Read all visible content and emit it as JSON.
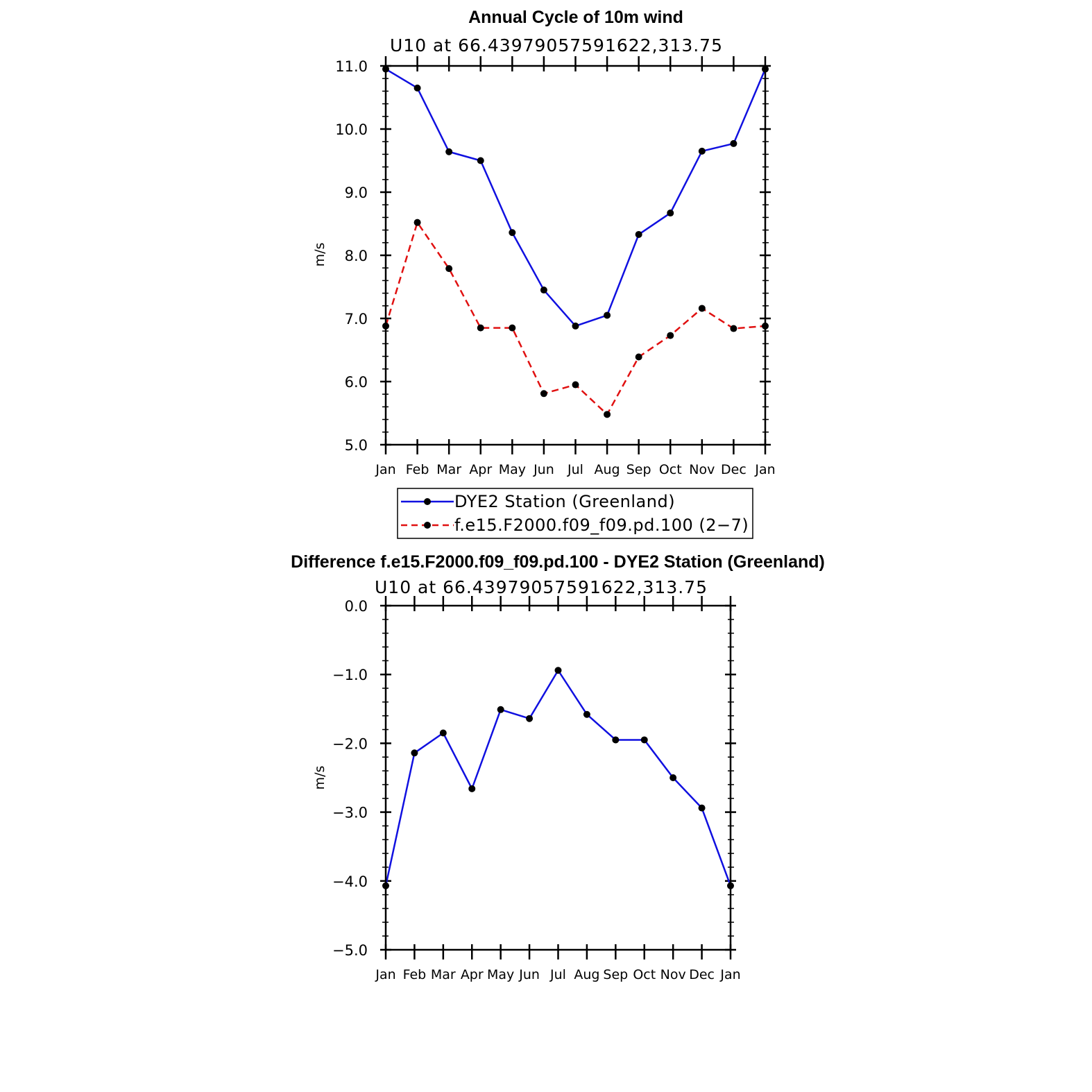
{
  "colors": {
    "obs_line": "#1010e0",
    "model_line": "#e01010",
    "marker": "#000000",
    "axis": "#000000",
    "background": "#ffffff"
  },
  "chart_data": [
    {
      "type": "line",
      "title": "Annual Cycle of 10m wind",
      "subtitle": "U10 at 66.43979057591622,313.75",
      "ylabel": "m/s",
      "xlabel": "",
      "categories": [
        "Jan",
        "Feb",
        "Mar",
        "Apr",
        "May",
        "Jun",
        "Jul",
        "Aug",
        "Sep",
        "Oct",
        "Nov",
        "Dec",
        "Jan"
      ],
      "ylim": [
        5.0,
        11.0
      ],
      "yticks": [
        "5.0",
        "6.0",
        "7.0",
        "8.0",
        "9.0",
        "10.0",
        "11.0"
      ],
      "series": [
        {
          "name": "DYE2 Station (Greenland)",
          "style": "solid",
          "color": "#1010e0",
          "values": [
            10.95,
            10.65,
            9.64,
            9.5,
            8.36,
            7.45,
            6.88,
            7.05,
            8.33,
            8.67,
            9.65,
            9.77,
            10.95
          ]
        },
        {
          "name": "f.e15.F2000.f09_f09.pd.100 (2−7)",
          "style": "dashed",
          "color": "#e01010",
          "values": [
            6.88,
            8.52,
            7.79,
            6.85,
            6.85,
            5.81,
            5.95,
            5.48,
            6.39,
            6.73,
            7.16,
            6.84,
            6.88
          ]
        }
      ],
      "legend": "bottom-center",
      "grid": false
    },
    {
      "type": "line",
      "title": "Difference f.e15.F2000.f09_f09.pd.100 - DYE2 Station (Greenland)",
      "subtitle": "U10 at 66.43979057591622,313.75",
      "ylabel": "m/s",
      "xlabel": "",
      "categories": [
        "Jan",
        "Feb",
        "Mar",
        "Apr",
        "May",
        "Jun",
        "Jul",
        "Aug",
        "Sep",
        "Oct",
        "Nov",
        "Dec",
        "Jan"
      ],
      "ylim": [
        -5.0,
        0.0
      ],
      "yticks": [
        "−5.0",
        "−4.0",
        "−3.0",
        "−2.0",
        "−1.0",
        "0.0"
      ],
      "series": [
        {
          "style": "solid",
          "color": "#1010e0",
          "values": [
            -4.07,
            -2.14,
            -1.85,
            -2.66,
            -1.51,
            -1.64,
            -0.94,
            -1.58,
            -1.95,
            -1.95,
            -2.5,
            -2.94,
            -4.07
          ]
        }
      ],
      "legend": "none",
      "grid": false
    }
  ]
}
